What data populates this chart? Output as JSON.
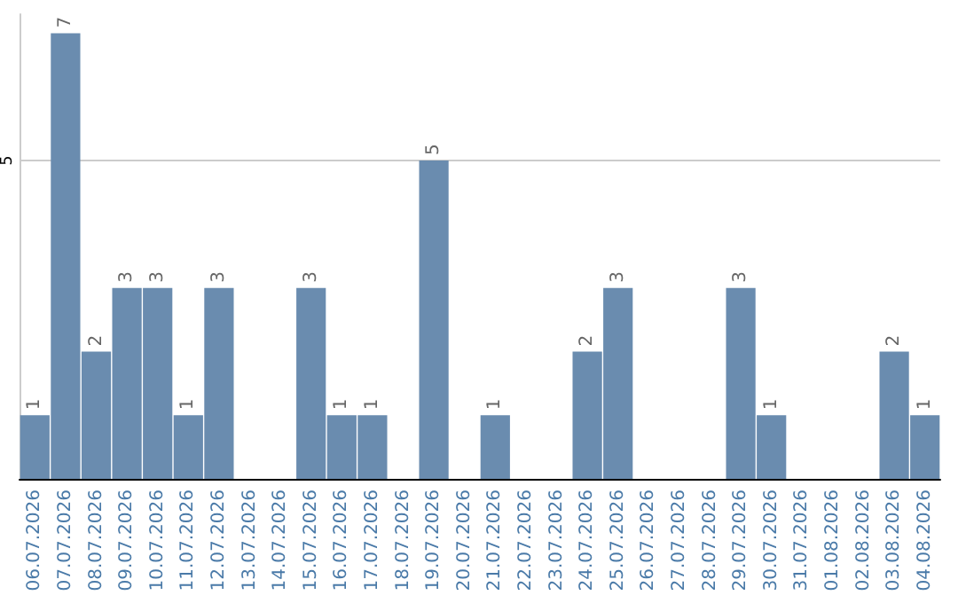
{
  "chart_data": {
    "type": "bar",
    "categories": [
      "06.07.2026",
      "07.07.2026",
      "08.07.2026",
      "09.07.2026",
      "10.07.2026",
      "11.07.2026",
      "12.07.2026",
      "13.07.2026",
      "14.07.2026",
      "15.07.2026",
      "16.07.2026",
      "17.07.2026",
      "18.07.2026",
      "19.07.2026",
      "20.07.2026",
      "21.07.2026",
      "22.07.2026",
      "23.07.2026",
      "24.07.2026",
      "25.07.2026",
      "26.07.2026",
      "27.07.2026",
      "28.07.2026",
      "29.07.2026",
      "30.07.2026",
      "31.07.2026",
      "01.08.2026",
      "02.08.2026",
      "03.08.2026",
      "04.08.2026"
    ],
    "values": [
      1,
      7,
      2,
      3,
      3,
      1,
      3,
      0,
      0,
      3,
      1,
      1,
      0,
      5,
      0,
      1,
      0,
      0,
      2,
      3,
      0,
      0,
      0,
      3,
      1,
      0,
      0,
      0,
      2,
      1
    ],
    "value_labels": [
      "1",
      "7",
      "2",
      "3",
      "3",
      "1",
      "3",
      null,
      null,
      "3",
      "1",
      "1",
      null,
      "5",
      null,
      "1",
      null,
      null,
      "2",
      "3",
      null,
      null,
      null,
      "3",
      "1",
      null,
      null,
      null,
      "2",
      "1"
    ],
    "color": "#6a8caf",
    "ylim": [
      0,
      7.3
    ],
    "yticks": [
      5
    ],
    "grid": "y"
  }
}
